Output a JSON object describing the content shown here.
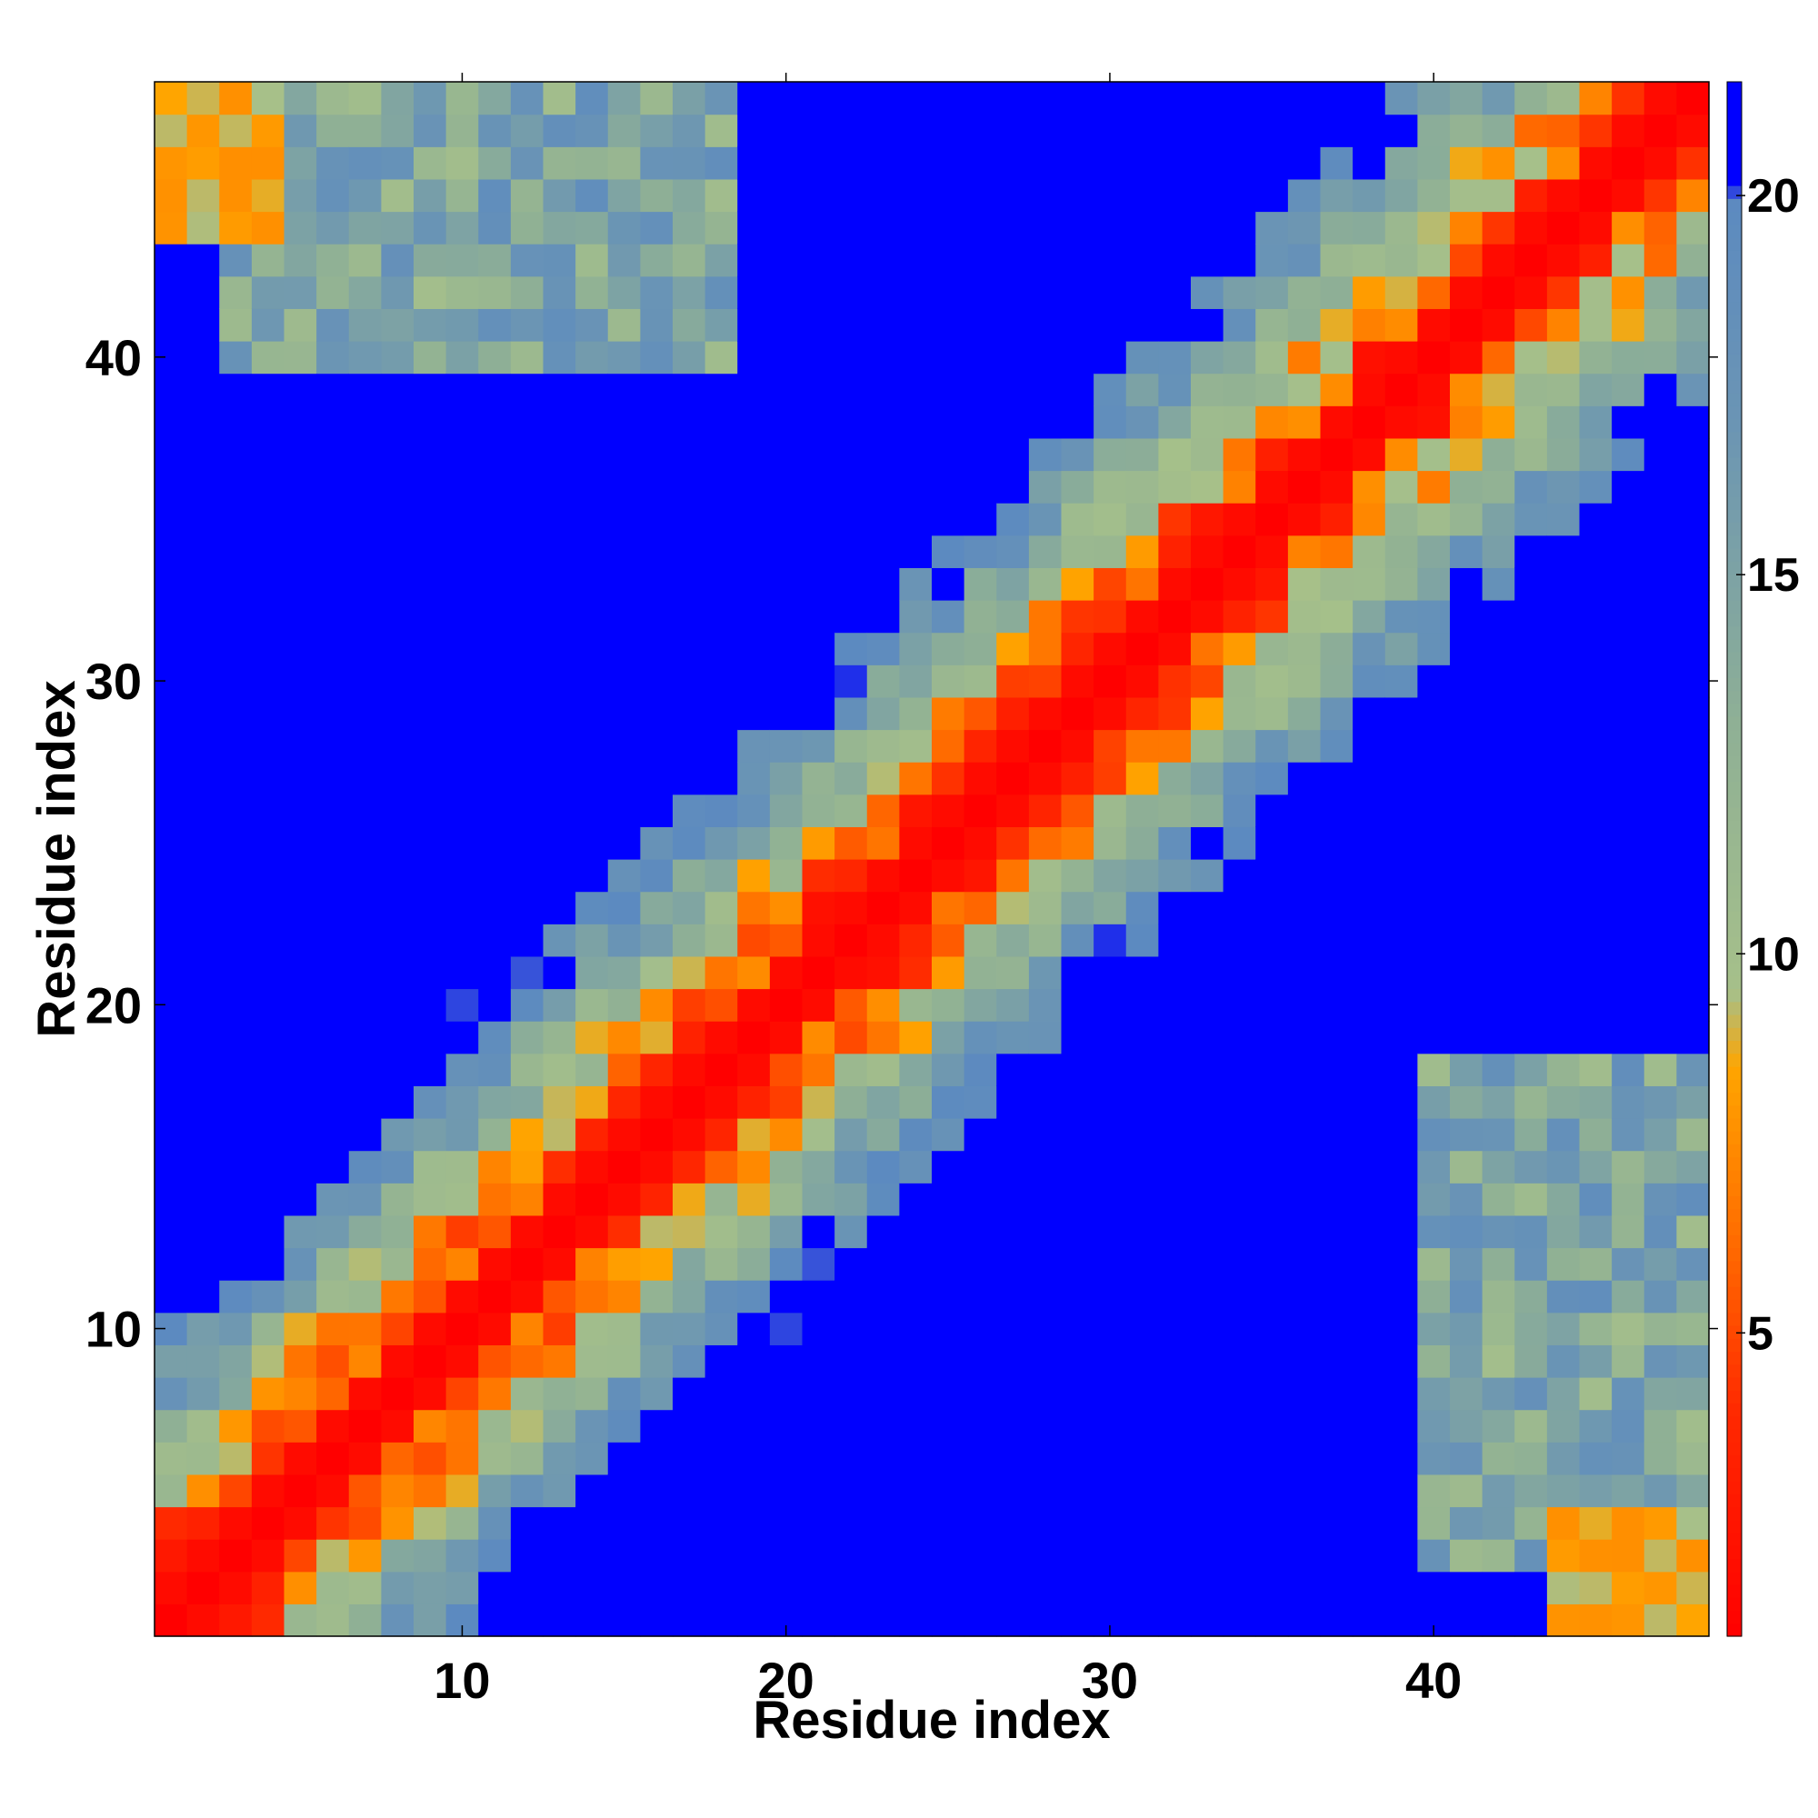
{
  "chart_data": {
    "type": "heatmap",
    "title": "",
    "xlabel": "Residue index",
    "ylabel": "Residue index",
    "n": 48,
    "x_range": [
      0.5,
      48.5
    ],
    "y_range": [
      0.5,
      48.5
    ],
    "x_ticks": [
      10,
      20,
      30,
      40
    ],
    "y_ticks": [
      10,
      20,
      30,
      40
    ],
    "matrix_symmetric": true,
    "value_model": {
      "description": "distance between residue i and j grows with sequence separation",
      "diag_value": 1.0,
      "near_diag_slope": 2.2,
      "saturation_value": 21.5
    },
    "colorbar": {
      "range": [
        1,
        21.5
      ],
      "ticks": [
        5,
        10,
        15,
        20
      ],
      "stops": [
        {
          "value": 1.0,
          "color": "#ff0000"
        },
        {
          "value": 4.0,
          "color": "#ff2a00"
        },
        {
          "value": 6.0,
          "color": "#ff6600"
        },
        {
          "value": 8.5,
          "color": "#ffa500"
        },
        {
          "value": 9.5,
          "color": "#a6c08a"
        },
        {
          "value": 13.0,
          "color": "#8fb095"
        },
        {
          "value": 17.0,
          "color": "#6b95b4"
        },
        {
          "value": 20.0,
          "color": "#5c8ac0"
        },
        {
          "value": 20.1,
          "color": "#0000ff"
        },
        {
          "value": 21.5,
          "color": "#0000ff"
        }
      ]
    }
  }
}
